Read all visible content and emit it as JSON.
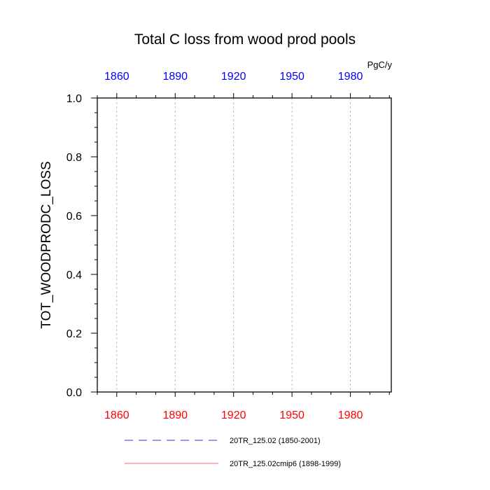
{
  "chart_data": {
    "type": "line",
    "title": "Total C loss from wood prod pools",
    "ylabel": "TOT_WOODPRODC_LOSS",
    "units": "PgC/y",
    "ylim": [
      0,
      1.0
    ],
    "y_ticks": [
      "0.0",
      "0.2",
      "0.4",
      "0.6",
      "0.8",
      "1.0"
    ],
    "xlim": [
      1850,
      2001
    ],
    "x_ticks_bottom": [
      "1860",
      "1890",
      "1920",
      "1950",
      "1980"
    ],
    "x_ticks_top": [
      "1860",
      "1890",
      "1920",
      "1950",
      "1980"
    ],
    "grid": "vertical dashed at x ticks",
    "series": [
      {
        "name": "20TR_125.02 (1850-2001)",
        "color": "#3333cc",
        "style": "dashed",
        "x_range": [
          1850,
          2001
        ],
        "values": [
          0,
          0
        ]
      },
      {
        "name": "20TR_125.02cmip6 (1898-1999)",
        "color": "#ff6666",
        "style": "solid",
        "x_range": [
          1898,
          1999
        ],
        "values": [
          0,
          0
        ]
      }
    ],
    "colors": {
      "bottom_axis": "#ff0000",
      "top_axis": "#0000ff"
    }
  }
}
